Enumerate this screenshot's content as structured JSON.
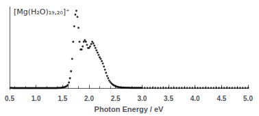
{
  "chart_data": {
    "type": "scatter",
    "xlabel": "Photon Energy / eV",
    "annotation": "[Mg(H₂O)₁₉,₂₀]⁺",
    "xlim": [
      0.5,
      5.0
    ],
    "ylim": [
      -0.015,
      1.05
    ],
    "xticks": [
      0.5,
      {
        "value": 1.0,
        "label": "1.0"
      },
      1.5,
      {
        "value": 2.0,
        "label": "2.0"
      },
      2.5,
      {
        "value": 3.0,
        "label": "3.0"
      },
      3.5,
      {
        "value": 4.0,
        "label": "4.0"
      },
      4.5,
      {
        "value": 5.0,
        "label": "5.0"
      }
    ],
    "yticks": [],
    "tick_labels": "x",
    "grid": false,
    "color": "#000000",
    "x": [
      0.52,
      0.54,
      0.56,
      0.58,
      0.6,
      0.62,
      0.64,
      0.66,
      0.68,
      0.7,
      0.72,
      0.74,
      0.76,
      0.78,
      0.8,
      0.82,
      0.84,
      0.86,
      0.88,
      0.9,
      0.92,
      0.94,
      0.96,
      0.98,
      1.0,
      1.02,
      1.04,
      1.06,
      1.08,
      1.1,
      1.12,
      1.14,
      1.16,
      1.18,
      1.2,
      1.22,
      1.24,
      1.26,
      1.28,
      1.3,
      1.32,
      1.34,
      1.36,
      1.38,
      1.4,
      1.42,
      1.44,
      1.46,
      1.48,
      1.5,
      1.52,
      1.54,
      1.56,
      1.58,
      1.6,
      1.62,
      1.64,
      1.66,
      1.68,
      1.7,
      1.72,
      1.74,
      1.76,
      1.78,
      1.8,
      1.82,
      1.84,
      1.86,
      1.88,
      1.9,
      1.92,
      1.94,
      1.96,
      1.98,
      2.0,
      2.02,
      2.04,
      2.06,
      2.08,
      2.1,
      2.12,
      2.14,
      2.16,
      2.18,
      2.2,
      2.22,
      2.24,
      2.26,
      2.28,
      2.3,
      2.32,
      2.34,
      2.36,
      2.38,
      2.4,
      2.42,
      2.44,
      2.46,
      2.48,
      2.5,
      2.52,
      2.54,
      2.56,
      2.58,
      2.6,
      2.62,
      2.64,
      2.66,
      2.68,
      2.7,
      2.72,
      2.74,
      2.76,
      2.78,
      2.8,
      2.82,
      2.84,
      2.86,
      2.88,
      2.9,
      2.92,
      2.94,
      2.96,
      2.98,
      3.0,
      3.05,
      3.1,
      3.15,
      3.2,
      3.25,
      3.3,
      3.35,
      3.4,
      3.45,
      3.5,
      3.55,
      3.6,
      3.65,
      3.7,
      3.75,
      3.8,
      3.85,
      3.9,
      3.95,
      4.0,
      4.05,
      4.1,
      4.15,
      4.2,
      4.25,
      4.3,
      4.35,
      4.4,
      4.45,
      4.5,
      4.55,
      4.6,
      4.65,
      4.7,
      4.75,
      4.8,
      4.85,
      4.9,
      4.95,
      5.0
    ],
    "values": [
      0.005,
      0.005,
      0.004,
      0.004,
      0.004,
      0.004,
      0.004,
      0.003,
      0.003,
      0.003,
      0.003,
      0.003,
      0.003,
      0.003,
      0.003,
      0.003,
      0.003,
      0.003,
      0.003,
      0.003,
      0.003,
      0.003,
      0.003,
      0.003,
      0.003,
      0.003,
      0.003,
      0.003,
      0.003,
      0.003,
      0.003,
      0.003,
      0.003,
      0.003,
      0.003,
      0.004,
      0.004,
      0.004,
      0.004,
      0.004,
      0.004,
      0.004,
      0.004,
      0.004,
      0.004,
      0.005,
      0.005,
      0.006,
      0.007,
      0.01,
      0.013,
      0.016,
      0.022,
      0.03,
      0.042,
      0.075,
      0.13,
      0.22,
      0.38,
      0.6,
      0.8,
      0.95,
      1.0,
      0.92,
      0.78,
      0.6,
      0.5,
      0.5,
      0.54,
      0.6,
      0.62,
      0.6,
      0.56,
      0.52,
      0.52,
      0.54,
      0.57,
      0.6,
      0.58,
      0.55,
      0.52,
      0.49,
      0.46,
      0.43,
      0.4,
      0.38,
      0.35,
      0.32,
      0.28,
      0.24,
      0.2,
      0.16,
      0.13,
      0.1,
      0.08,
      0.065,
      0.052,
      0.042,
      0.034,
      0.027,
      0.022,
      0.018,
      0.015,
      0.013,
      0.011,
      0.01,
      0.009,
      0.009,
      0.008,
      0.008,
      0.007,
      0.007,
      0.007,
      0.006,
      0.006,
      0.006,
      0.006,
      0.006,
      0.005,
      0.005,
      0.005,
      0.005,
      0.005,
      0.005,
      0.005,
      0.005,
      0.005,
      0.005,
      0.005,
      0.005,
      0.005,
      0.005,
      0.005,
      0.005,
      0.005,
      0.005,
      0.005,
      0.005,
      0.006,
      0.006,
      0.006,
      0.006,
      0.006,
      0.006,
      0.006,
      0.006,
      0.005,
      0.005,
      0.005,
      0.005,
      0.005,
      0.005,
      0.005,
      0.005,
      0.005,
      0.005,
      0.005,
      0.005,
      0.005,
      0.005,
      0.005,
      0.005,
      0.005,
      0.005,
      0.005
    ]
  }
}
